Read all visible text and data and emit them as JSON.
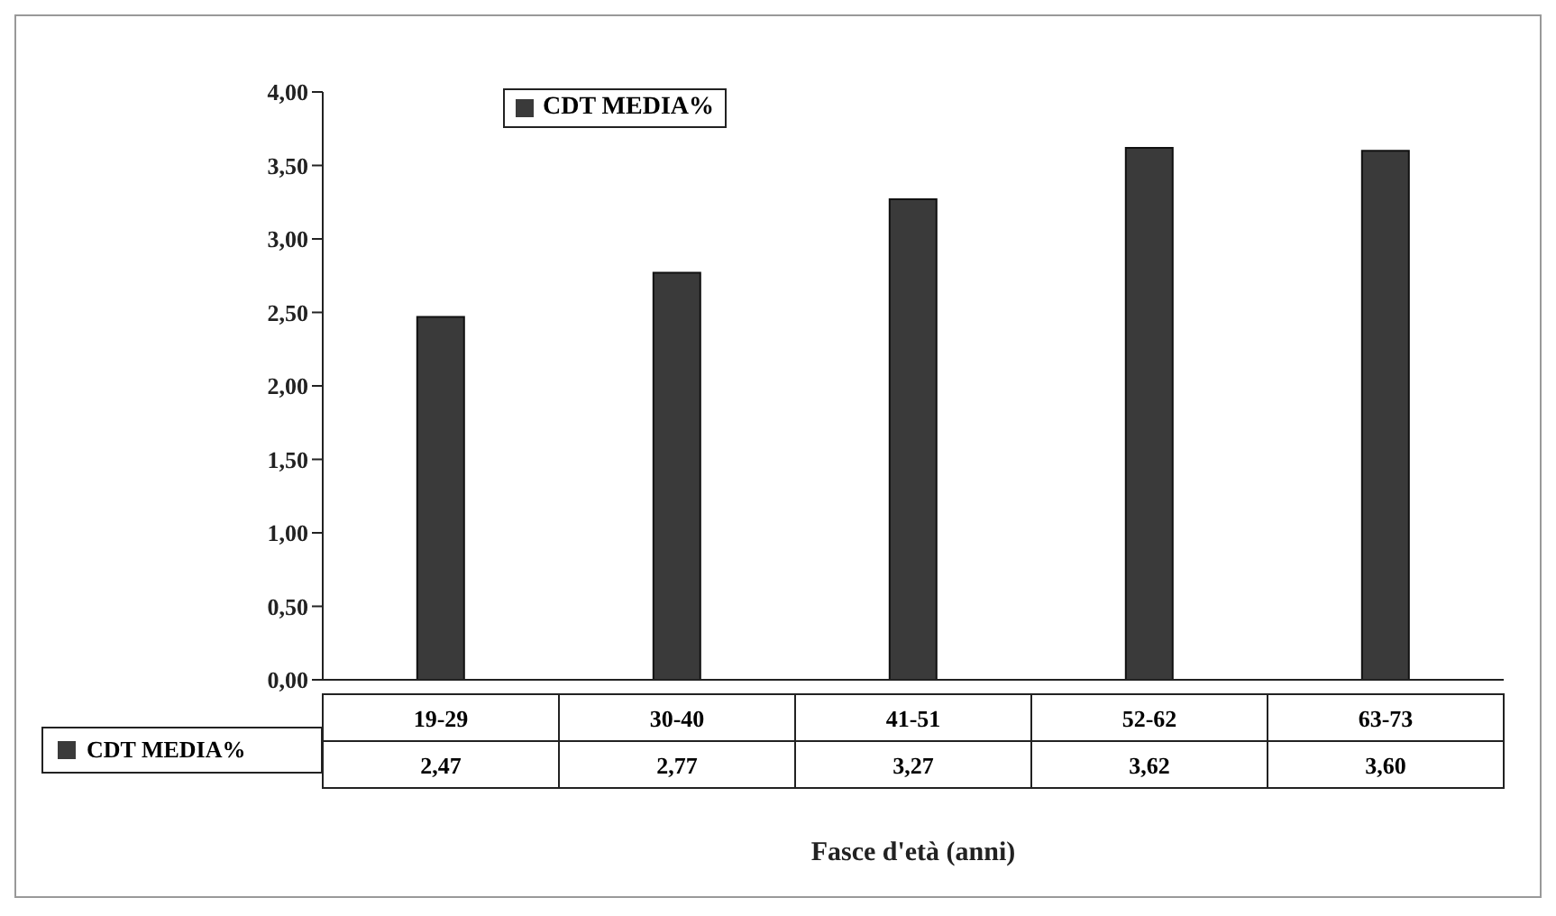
{
  "chart_data": {
    "type": "bar",
    "xlabel": "Fasce d'età (anni)",
    "categories": [
      "19-29",
      "30-40",
      "41-51",
      "52-62",
      "63-73"
    ],
    "series": [
      {
        "name": "CDT MEDIA%",
        "color": "#3a3a3a",
        "values": [
          2.47,
          2.77,
          3.27,
          3.62,
          3.6
        ],
        "value_labels": [
          "2,47",
          "2,77",
          "3,27",
          "3,62",
          "3,60"
        ]
      }
    ],
    "ylim": [
      0,
      4
    ],
    "yticks": [
      {
        "value": 0,
        "label": "0,00"
      },
      {
        "value": 0.5,
        "label": "0,50"
      },
      {
        "value": 1,
        "label": "1,00"
      },
      {
        "value": 1.5,
        "label": "1,50"
      },
      {
        "value": 2,
        "label": "2,00"
      },
      {
        "value": 2.5,
        "label": "2,50"
      },
      {
        "value": 3,
        "label": "3,00"
      },
      {
        "value": 3.5,
        "label": "3,50"
      },
      {
        "value": 4,
        "label": "4,00"
      }
    ],
    "legend": "top left"
  }
}
